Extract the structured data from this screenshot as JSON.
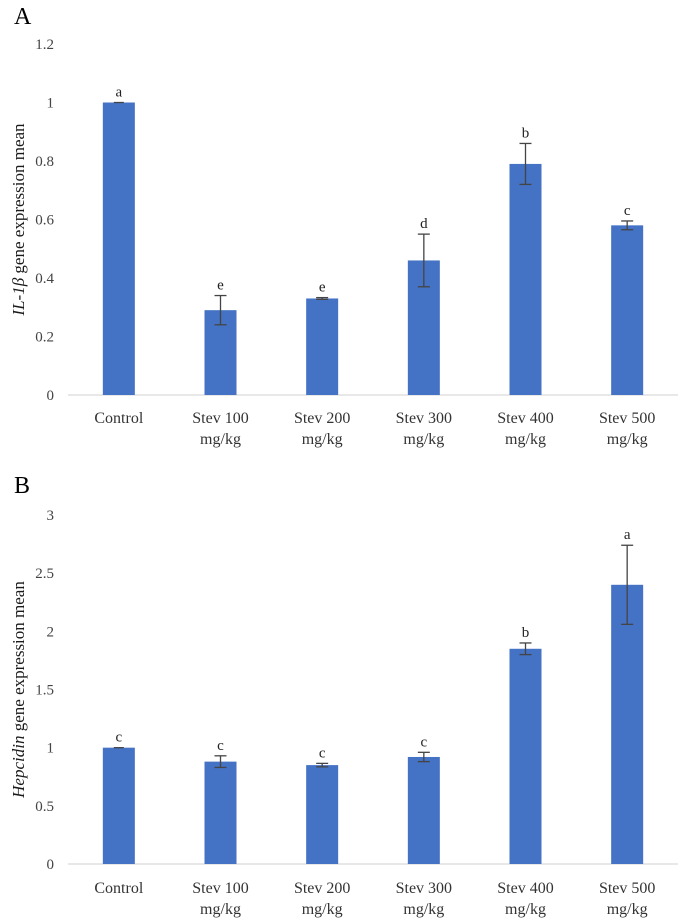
{
  "chart_data": [
    {
      "type": "bar",
      "panel": "A",
      "ylabel_italic": "IL-1β",
      "ylabel_rest": " gene expression  mean",
      "categories": [
        {
          "line1": "Control",
          "line2": ""
        },
        {
          "line1": "Stev 100",
          "line2": "mg/kg"
        },
        {
          "line1": "Stev 200",
          "line2": "mg/kg"
        },
        {
          "line1": "Stev 300",
          "line2": "mg/kg"
        },
        {
          "line1": "Stev 400",
          "line2": "mg/kg"
        },
        {
          "line1": "Stev 500",
          "line2": "mg/kg"
        }
      ],
      "values": [
        1.0,
        0.29,
        0.33,
        0.46,
        0.79,
        0.58
      ],
      "errors": [
        0.0,
        0.05,
        0.003,
        0.09,
        0.07,
        0.015
      ],
      "labels": [
        "a",
        "e",
        "e",
        "d",
        "b",
        "c"
      ],
      "ylim": [
        0,
        1.2
      ],
      "yticks": [
        0,
        0.2,
        0.4,
        0.6,
        0.8,
        1.0,
        1.2
      ],
      "ytick_labels": [
        "0",
        "0.2",
        "0.4",
        "0.6",
        "0.8",
        "1",
        "1.2"
      ],
      "color": "#4472C4"
    },
    {
      "type": "bar",
      "panel": "B",
      "ylabel_italic": "Hepcidin",
      "ylabel_rest": " gene expression mean",
      "categories": [
        {
          "line1": "Control",
          "line2": ""
        },
        {
          "line1": "Stev 100",
          "line2": "mg/kg"
        },
        {
          "line1": "Stev 200",
          "line2": "mg/kg"
        },
        {
          "line1": "Stev 300",
          "line2": "mg/kg"
        },
        {
          "line1": "Stev 400",
          "line2": "mg/kg"
        },
        {
          "line1": "Stev 500",
          "line2": "mg/kg"
        }
      ],
      "values": [
        1.0,
        0.88,
        0.85,
        0.92,
        1.85,
        2.4
      ],
      "errors": [
        0.0,
        0.05,
        0.015,
        0.04,
        0.05,
        0.34
      ],
      "labels": [
        "c",
        "c",
        "c",
        "c",
        "b",
        "a"
      ],
      "ylim": [
        0,
        3
      ],
      "yticks": [
        0,
        0.5,
        1.0,
        1.5,
        2.0,
        2.5,
        3.0
      ],
      "ytick_labels": [
        "0",
        "0.5",
        "1",
        "1.5",
        "2",
        "2.5",
        "3"
      ],
      "color": "#4472C4"
    }
  ]
}
